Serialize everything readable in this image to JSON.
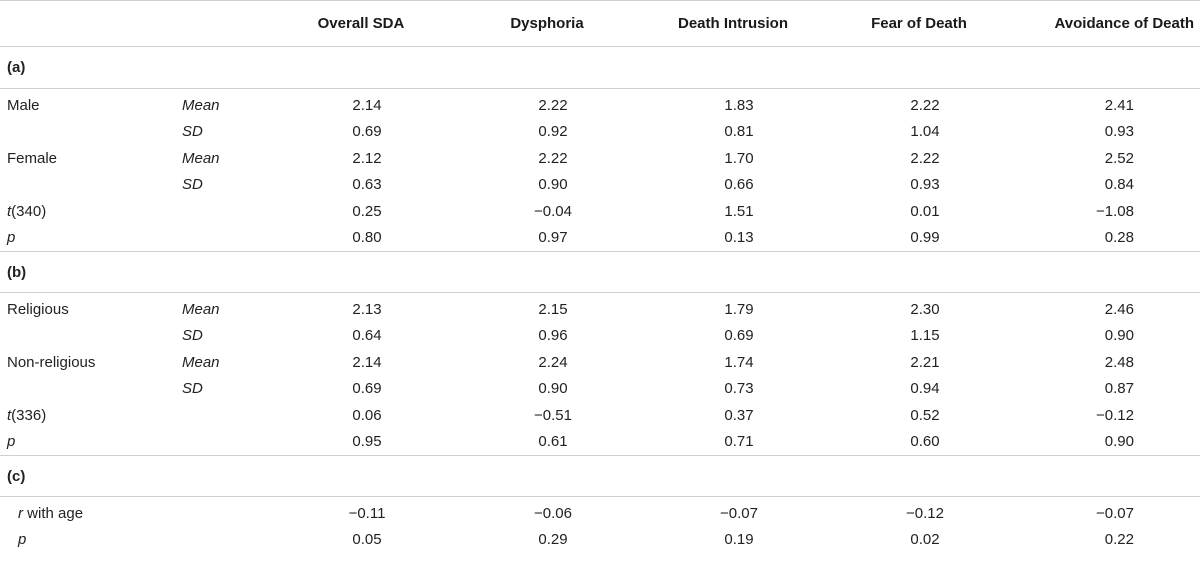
{
  "header": {
    "columns": [
      "Overall SDA",
      "Dysphoria",
      "Death Intrusion",
      "Fear of Death",
      "Avoidance of Death"
    ]
  },
  "section_a": {
    "label": "(a)",
    "rows": [
      {
        "group": "Male",
        "stat": "Mean",
        "values": [
          "2.14",
          "2.22",
          "1.83",
          "2.22",
          "2.41"
        ]
      },
      {
        "group": "",
        "stat": "SD",
        "values": [
          "0.69",
          "0.92",
          "0.81",
          "1.04",
          "0.93"
        ]
      },
      {
        "group": "Female",
        "stat": "Mean",
        "values": [
          "2.12",
          "2.22",
          "1.70",
          "2.22",
          "2.52"
        ]
      },
      {
        "group": "",
        "stat": "SD",
        "values": [
          "0.63",
          "0.90",
          "0.66",
          "0.93",
          "0.84"
        ]
      },
      {
        "group_italic": "t",
        "group_rest": "(340)",
        "stat": "",
        "values": [
          "0.25",
          "−0.04",
          "1.51",
          "0.01",
          "−1.08"
        ]
      },
      {
        "group_italic": "p",
        "group_rest": "",
        "stat": "",
        "values": [
          "0.80",
          "0.97",
          "0.13",
          "0.99",
          "0.28"
        ]
      }
    ]
  },
  "section_b": {
    "label": "(b)",
    "rows": [
      {
        "group": "Religious",
        "stat": "Mean",
        "values": [
          "2.13",
          "2.15",
          "1.79",
          "2.30",
          "2.46"
        ]
      },
      {
        "group": "",
        "stat": "SD",
        "values": [
          "0.64",
          "0.96",
          "0.69",
          "1.15",
          "0.90"
        ]
      },
      {
        "group": "Non-religious",
        "stat": "Mean",
        "values": [
          "2.14",
          "2.24",
          "1.74",
          "2.21",
          "2.48"
        ]
      },
      {
        "group": "",
        "stat": "SD",
        "values": [
          "0.69",
          "0.90",
          "0.73",
          "0.94",
          "0.87"
        ]
      },
      {
        "group_italic": "t",
        "group_rest": "(336)",
        "stat": "",
        "values": [
          "0.06",
          "−0.51",
          "0.37",
          "0.52",
          "−0.12"
        ]
      },
      {
        "group_italic": "p",
        "group_rest": "",
        "stat": "",
        "values": [
          "0.95",
          "0.61",
          "0.71",
          "0.60",
          "0.90"
        ]
      }
    ]
  },
  "section_c": {
    "label": "(c)",
    "rows": [
      {
        "group_italic": "r",
        "group_rest": " with age",
        "stat": "",
        "values": [
          "−0.11",
          "−0.06",
          "−0.07",
          "−0.12",
          "−0.07"
        ]
      },
      {
        "group_italic": "p",
        "group_rest": "",
        "stat": "",
        "values": [
          "0.05",
          "0.29",
          "0.19",
          "0.02",
          "0.22"
        ]
      }
    ]
  }
}
